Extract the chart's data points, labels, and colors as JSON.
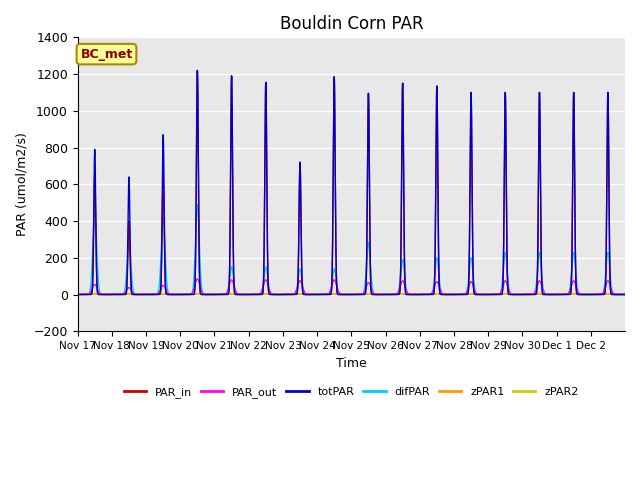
{
  "title": "Bouldin Corn PAR",
  "xlabel": "Time",
  "ylabel": "PAR (umol/m2/s)",
  "ylim": [
    -200,
    1400
  ],
  "xlim_days": [
    0,
    16
  ],
  "background_color": "#e8e8e8",
  "grid_color": "white",
  "legend_label": "BC_met",
  "series": {
    "PAR_in": {
      "color": "#cc0000",
      "lw": 1.0
    },
    "PAR_out": {
      "color": "#ff00ff",
      "lw": 1.0
    },
    "totPAR": {
      "color": "#0000cc",
      "lw": 1.0
    },
    "difPAR": {
      "color": "#00ccff",
      "lw": 1.0
    },
    "zPAR1": {
      "color": "#ff9900",
      "lw": 1.2
    },
    "zPAR2": {
      "color": "#cccc00",
      "lw": 1.2
    }
  },
  "tick_labels": [
    "Nov 17",
    "Nov 18",
    "Nov 19",
    "Nov 20",
    "Nov 21",
    "Nov 22",
    "Nov 23",
    "Nov 24",
    "Nov 25",
    "Nov 26",
    "Nov 27",
    "Nov 28",
    "Nov 29",
    "Nov 30",
    "Dec 1",
    "Dec 2"
  ],
  "tick_positions": [
    0,
    1,
    2,
    3,
    4,
    5,
    6,
    7,
    8,
    9,
    10,
    11,
    12,
    13,
    14,
    15
  ],
  "totPAR_peaks": [
    790,
    640,
    870,
    1220,
    1190,
    1155,
    720,
    1185,
    1095,
    1150,
    1135,
    1100,
    1100,
    1100,
    1100,
    1100
  ],
  "PAR_in_peaks": [
    660,
    400,
    640,
    1220,
    1190,
    1155,
    720,
    1185,
    1095,
    1150,
    1135,
    1100,
    1100,
    1100,
    1100,
    1100
  ],
  "PAR_out_peaks": [
    55,
    38,
    50,
    85,
    80,
    80,
    75,
    80,
    65,
    75,
    70,
    70,
    75,
    75,
    75,
    75
  ],
  "difPAR_peaks": [
    450,
    280,
    420,
    490,
    150,
    150,
    140,
    140,
    285,
    190,
    200,
    200,
    230,
    230,
    230,
    230
  ],
  "totPAR_narrow": 0.028,
  "difPAR_narrow": 0.055,
  "par_out_narrow": 0.07
}
